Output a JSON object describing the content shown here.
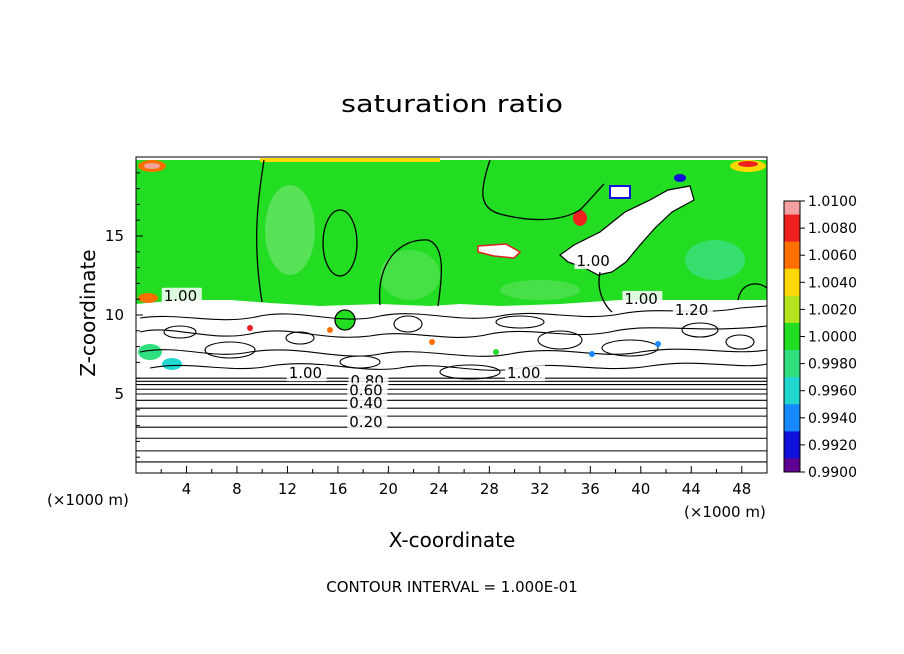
{
  "chart_data": {
    "type": "heatmap",
    "title": "saturation ratio",
    "xlabel": "X-coordinate",
    "ylabel": "Z-coordinate",
    "x_unit_left": "(×1000 m)",
    "x_unit_right": "(×1000 m)",
    "xlim": [
      0,
      50
    ],
    "ylim": [
      0,
      20
    ],
    "x_ticks": [
      "4",
      "8",
      "12",
      "16",
      "20",
      "24",
      "28",
      "32",
      "36",
      "40",
      "44",
      "48"
    ],
    "y_ticks": [
      "5",
      "10",
      "15"
    ],
    "footer": "CONTOUR INTERVAL = 1.000E-01",
    "colorbar": {
      "levels": [
        "1.0100",
        "1.0080",
        "1.0060",
        "1.0040",
        "1.0020",
        "1.0000",
        "0.9980",
        "0.9960",
        "0.9940",
        "0.9920",
        "0.9900"
      ],
      "colors": [
        "#f4a0a0",
        "#ee2020",
        "#ff7000",
        "#ffd800",
        "#b4e41c",
        "#22dd22",
        "#30e080",
        "#20d8d0",
        "#1888ff",
        "#1010d8",
        "#600090"
      ]
    },
    "contour_labels": [
      {
        "text": "1.00",
        "x": 2.2,
        "z": 10.9
      },
      {
        "text": "1.00",
        "x": 34.9,
        "z": 13.1
      },
      {
        "text": "1.00",
        "x": 38.7,
        "z": 10.7
      },
      {
        "text": "1.20",
        "x": 42.7,
        "z": 10.0
      },
      {
        "text": "1.00",
        "x": 12.1,
        "z": 6.0
      },
      {
        "text": "1.00",
        "x": 29.4,
        "z": 6.0
      },
      {
        "text": "0.80",
        "x": 17.0,
        "z": 5.5
      },
      {
        "text": "0.60",
        "x": 16.9,
        "z": 4.9
      },
      {
        "text": "0.40",
        "x": 16.9,
        "z": 4.1
      },
      {
        "text": "0.20",
        "x": 16.9,
        "z": 2.9
      }
    ],
    "flat_contours_z": [
      0.7,
      1.4,
      2.2,
      2.9,
      3.6,
      4.1,
      4.6,
      5.0,
      5.3,
      5.6,
      5.8,
      6.0
    ],
    "supersaturated_layer_base_z": 10.7
  }
}
